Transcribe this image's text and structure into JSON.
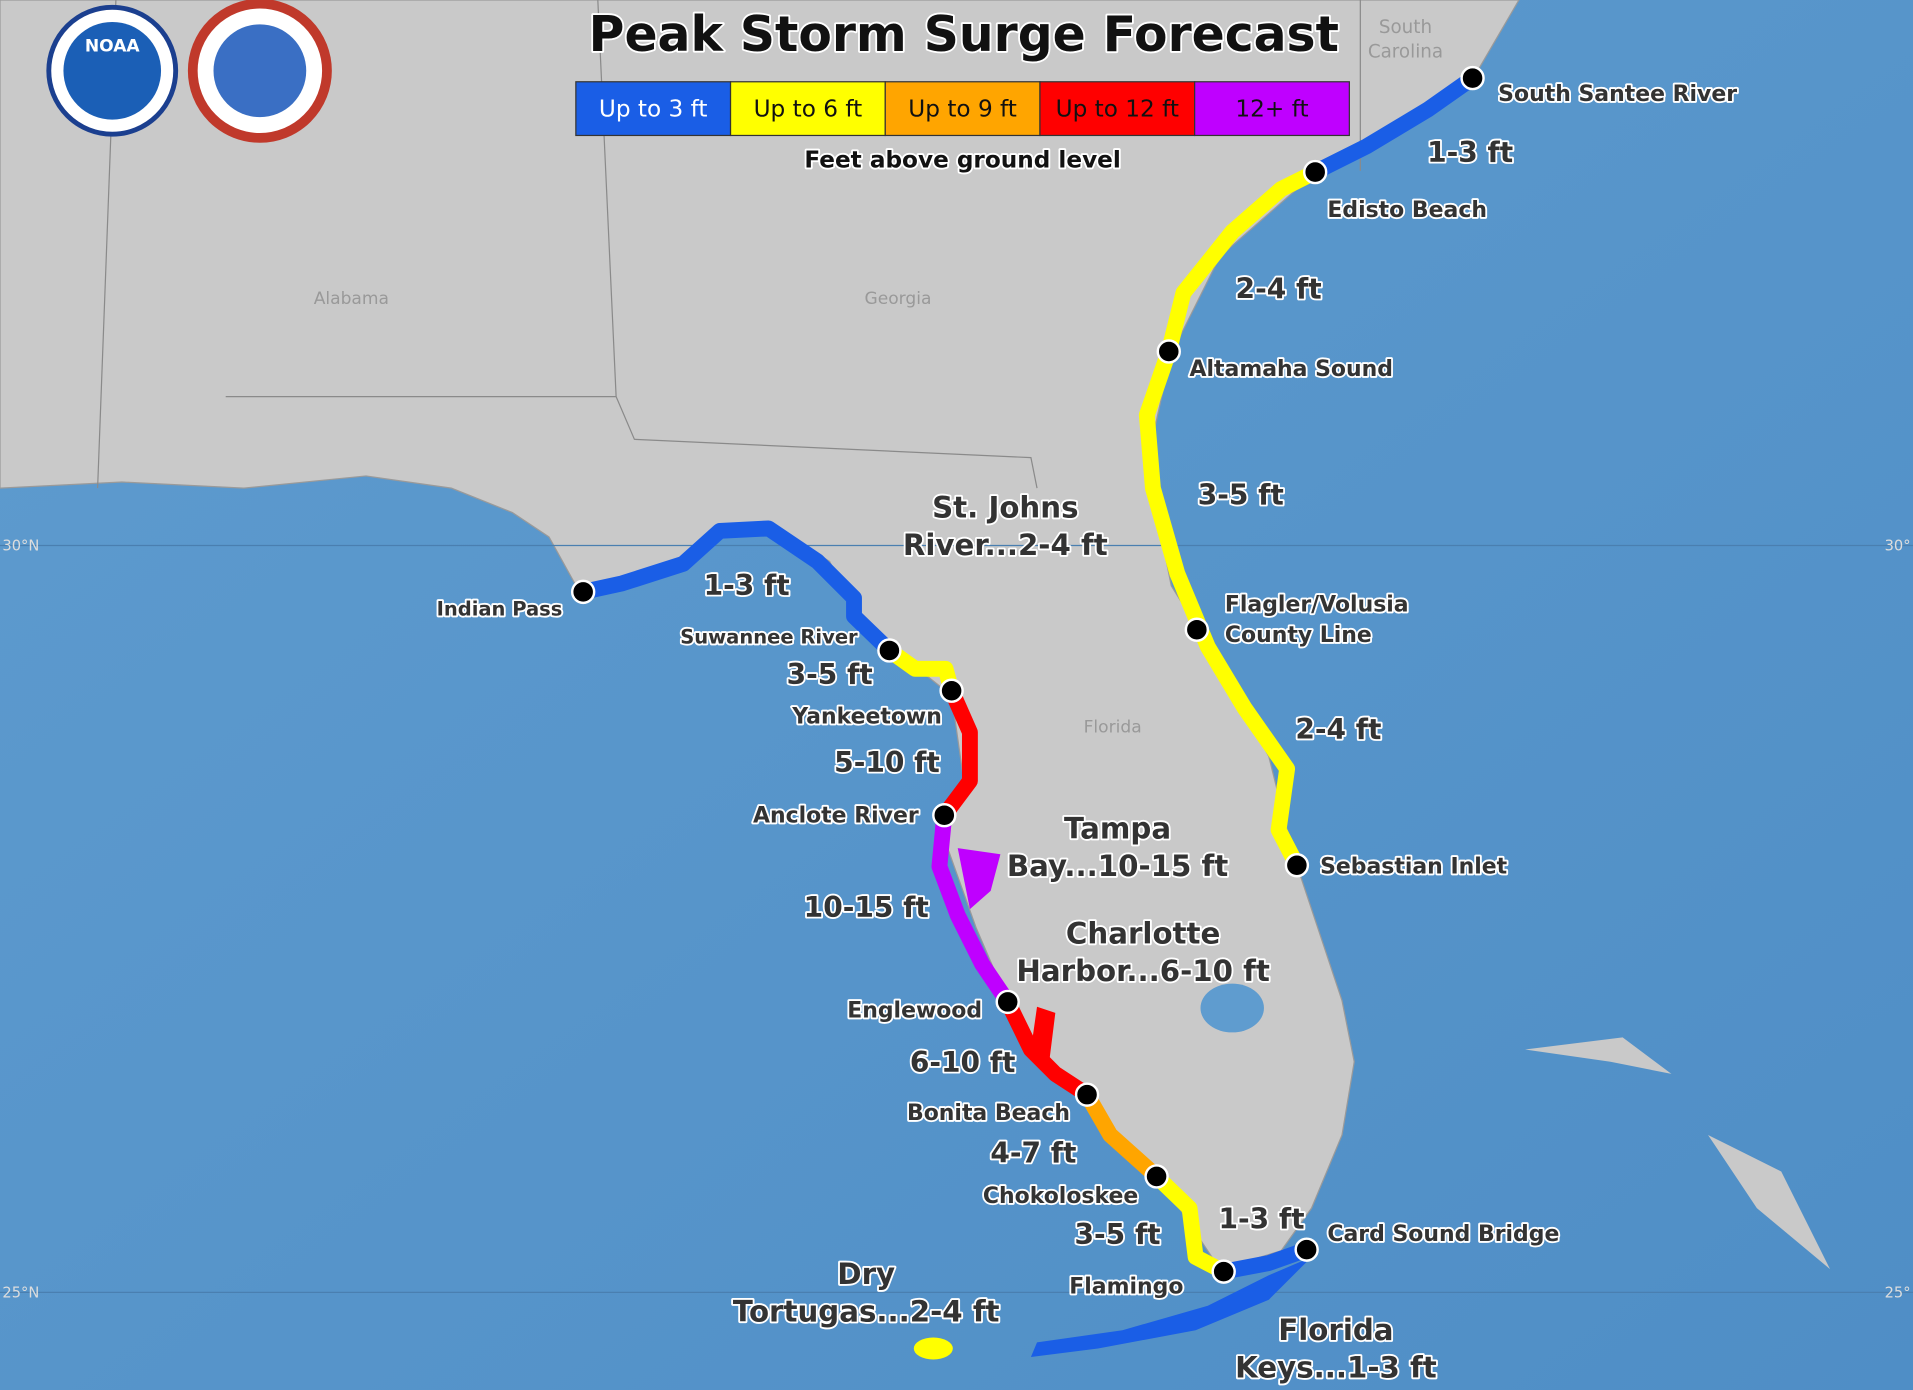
{
  "header": {
    "logos": [
      "NOAA"
    ],
    "title": "Peak Storm Surge Forecast",
    "legend": [
      "Up to 3 ft",
      "Up to 6 ft",
      "Up to 9 ft",
      "Up to 12 ft",
      "12+ ft"
    ],
    "legend_note": "Feet above ground level"
  },
  "map": {
    "states": [
      [
        "South",
        "Carolina"
      ],
      [
        "Alabama"
      ],
      [
        "Georgia"
      ],
      [
        "Florida"
      ]
    ],
    "latitudes": [
      "30°N",
      "25°N",
      "30°",
      "25°"
    ],
    "places": [
      [
        "South Santee River"
      ],
      [
        "Edisto Beach"
      ],
      [
        "Altamaha Sound"
      ],
      [
        "Flagler/Volusia",
        "County Line"
      ],
      [
        "Sebastian Inlet"
      ],
      [
        "Card Sound Bridge"
      ],
      [
        "Flamingo"
      ],
      [
        "Chokoloskee"
      ],
      [
        "Bonita Beach"
      ],
      [
        "Englewood"
      ],
      [
        "Anclote River"
      ],
      [
        "Yankeetown"
      ],
      [
        "Suwannee River"
      ],
      [
        "Indian Pass"
      ]
    ],
    "surge_labels": [
      "1-3 ft",
      "2-4 ft",
      "3-5 ft",
      "2-4 ft",
      "1-3 ft",
      "3-5 ft",
      "4-7 ft",
      "6-10 ft",
      "10-15 ft",
      "5-10 ft",
      "3-5 ft",
      "1-3 ft"
    ],
    "areas": [
      [
        "St. Johns",
        "River...2-4 ft"
      ],
      [
        "Tampa",
        "Bay...10-15 ft"
      ],
      [
        "Charlotte",
        "Harbor...6-10 ft"
      ],
      [
        "Dry",
        "Tortugas...2-4 ft"
      ],
      [
        "Florida",
        "Keys...1-3 ft"
      ]
    ]
  }
}
